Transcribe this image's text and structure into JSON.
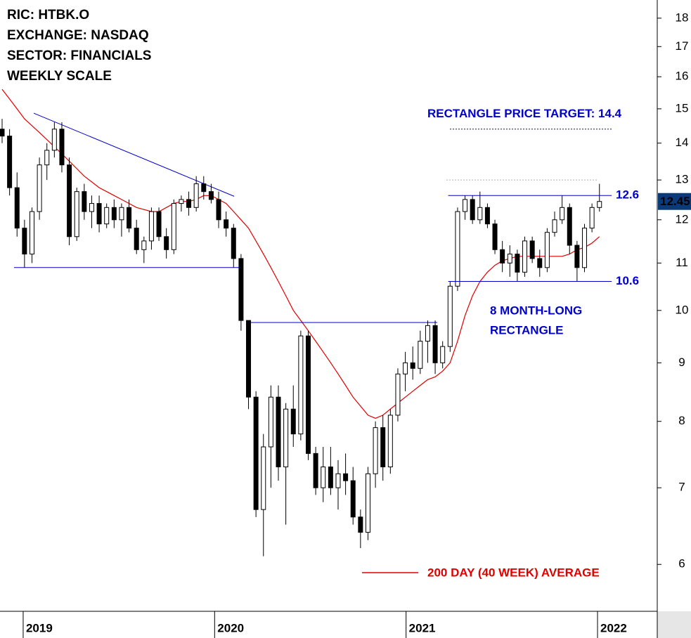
{
  "chart_data": {
    "type": "candlestick",
    "info": [
      "RIC: HTBK.O",
      "EXCHANGE: NASDAQ",
      "SECTOR: FINANCIALS",
      "WEEKLY SCALE"
    ],
    "log_scale": true,
    "xlim": [
      2018.879,
      2022.312
    ],
    "xticks": [
      2019,
      2020,
      2021,
      2022
    ],
    "ylim": [
      5.46,
      18.67
    ],
    "yticks": [
      6,
      7,
      8,
      9,
      10,
      11,
      12,
      13,
      14,
      15,
      16,
      17,
      18
    ],
    "x": [
      2018.89,
      2018.929,
      2018.968,
      2019.007,
      2019.046,
      2019.085,
      2019.124,
      2019.163,
      2019.202,
      2019.241,
      2019.28,
      2019.319,
      2019.358,
      2019.397,
      2019.436,
      2019.475,
      2019.514,
      2019.553,
      2019.592,
      2019.631,
      2019.67,
      2019.709,
      2019.748,
      2019.787,
      2019.826,
      2019.865,
      2019.904,
      2019.943,
      2019.982,
      2020.021,
      2020.06,
      2020.099,
      2020.138,
      2020.177,
      2020.216,
      2020.255,
      2020.294,
      2020.333,
      2020.372,
      2020.411,
      2020.45,
      2020.489,
      2020.528,
      2020.567,
      2020.606,
      2020.645,
      2020.684,
      2020.723,
      2020.762,
      2020.801,
      2020.84,
      2020.879,
      2020.918,
      2020.957,
      2020.996,
      2021.035,
      2021.074,
      2021.113,
      2021.152,
      2021.191,
      2021.23,
      2021.269,
      2021.308,
      2021.347,
      2021.386,
      2021.425,
      2021.464,
      2021.503,
      2021.542,
      2021.581,
      2021.62,
      2021.659,
      2021.698,
      2021.737,
      2021.776,
      2021.815,
      2021.854,
      2021.893,
      2021.932,
      2021.971,
      2022.01
    ],
    "open": [
      14.4,
      14.2,
      12.8,
      11.8,
      11.2,
      12.2,
      13.4,
      13.8,
      14.4,
      13.4,
      11.6,
      12.7,
      12.2,
      12.4,
      11.9,
      12.3,
      12.0,
      12.3,
      11.8,
      11.3,
      11.5,
      12.2,
      11.6,
      11.3,
      12.4,
      12.5,
      12.3,
      12.9,
      12.7,
      12.5,
      12.0,
      11.8,
      11.1,
      9.8,
      8.4,
      6.7,
      7.6,
      8.4,
      7.3,
      8.2,
      7.8,
      9.5,
      7.5,
      7.0,
      7.3,
      7.0,
      7.2,
      7.1,
      6.6,
      6.4,
      7.2,
      7.9,
      7.3,
      8.1,
      8.8,
      9.0,
      8.9,
      9.4,
      9.7,
      9.0,
      9.3,
      10.5,
      12.2,
      12.5,
      12.0,
      12.3,
      11.9,
      11.3,
      11.0,
      11.2,
      10.8,
      11.5,
      11.1,
      10.9,
      11.7,
      12.0,
      12.3,
      11.4,
      10.9,
      11.8,
      12.3
    ],
    "high": [
      14.7,
      14.4,
      13.2,
      12.0,
      12.3,
      13.6,
      14.0,
      14.6,
      14.6,
      13.6,
      12.8,
      12.9,
      12.6,
      12.6,
      12.4,
      12.5,
      12.4,
      12.5,
      12.0,
      11.6,
      12.3,
      12.3,
      11.8,
      12.5,
      12.6,
      12.7,
      13.1,
      13.1,
      12.9,
      12.7,
      12.2,
      11.9,
      11.2,
      9.8,
      8.5,
      7.8,
      8.6,
      8.6,
      8.3,
      8.6,
      9.6,
      9.6,
      7.6,
      7.6,
      7.6,
      7.4,
      7.5,
      7.3,
      6.7,
      7.3,
      8.0,
      8.1,
      8.2,
      8.9,
      9.2,
      9.3,
      9.6,
      9.8,
      9.8,
      9.4,
      10.6,
      12.3,
      12.6,
      12.6,
      12.7,
      12.4,
      12.0,
      11.5,
      11.4,
      11.3,
      11.6,
      11.6,
      11.3,
      11.8,
      12.2,
      12.6,
      12.4,
      11.5,
      11.9,
      12.4,
      12.9
    ],
    "low": [
      14.0,
      12.6,
      11.6,
      10.9,
      11.0,
      12.0,
      13.0,
      13.6,
      13.2,
      11.4,
      11.5,
      12.0,
      11.8,
      11.7,
      11.8,
      11.8,
      11.6,
      11.7,
      11.2,
      11.0,
      11.3,
      11.5,
      11.1,
      11.2,
      12.2,
      12.1,
      12.2,
      12.5,
      12.4,
      11.8,
      11.6,
      10.9,
      9.6,
      8.2,
      6.6,
      6.1,
      7.0,
      7.1,
      6.5,
      7.6,
      7.7,
      7.4,
      6.9,
      6.8,
      6.9,
      6.7,
      6.9,
      6.5,
      6.2,
      6.3,
      7.0,
      7.1,
      7.2,
      8.0,
      8.5,
      8.7,
      8.8,
      9.0,
      8.8,
      8.9,
      9.2,
      10.4,
      12.0,
      11.9,
      11.9,
      11.8,
      11.2,
      10.8,
      10.7,
      10.6,
      10.7,
      11.0,
      10.7,
      10.8,
      11.6,
      11.9,
      11.2,
      10.6,
      10.8,
      11.7,
      12.2
    ],
    "close": [
      14.2,
      12.8,
      11.8,
      11.2,
      12.2,
      13.4,
      13.8,
      14.4,
      13.4,
      11.6,
      12.7,
      12.2,
      12.4,
      11.9,
      12.3,
      12.0,
      12.3,
      11.8,
      11.3,
      11.5,
      12.2,
      11.6,
      11.3,
      12.4,
      12.5,
      12.3,
      12.9,
      12.7,
      12.5,
      12.0,
      11.8,
      11.1,
      9.8,
      8.4,
      6.7,
      7.6,
      8.4,
      7.3,
      8.2,
      7.8,
      9.5,
      7.5,
      7.0,
      7.3,
      7.0,
      7.2,
      7.1,
      6.6,
      6.4,
      7.2,
      7.9,
      7.3,
      8.1,
      8.8,
      9.0,
      8.9,
      9.4,
      9.7,
      9.0,
      9.3,
      10.5,
      12.2,
      12.5,
      12.0,
      12.3,
      11.9,
      11.3,
      11.0,
      11.2,
      10.8,
      11.5,
      11.1,
      10.9,
      11.7,
      12.0,
      12.3,
      11.4,
      10.9,
      11.8,
      12.3,
      12.45
    ],
    "up_color": "#ffffff",
    "down_color": "#000000",
    "moving_average": {
      "name": "200 DAY (40 WEEK) AVERAGE",
      "color": "#e00000",
      "values": [
        15.6,
        15.3,
        15.0,
        14.7,
        14.5,
        14.3,
        14.1,
        13.9,
        13.7,
        13.5,
        13.3,
        13.1,
        12.95,
        12.8,
        12.7,
        12.6,
        12.5,
        12.4,
        12.3,
        12.25,
        12.2,
        12.2,
        12.3,
        12.4,
        12.45,
        12.45,
        12.5,
        12.6,
        12.6,
        12.5,
        12.4,
        12.2,
        12.0,
        11.8,
        11.5,
        11.2,
        10.9,
        10.6,
        10.3,
        10.0,
        9.8,
        9.6,
        9.4,
        9.2,
        9.0,
        8.8,
        8.6,
        8.4,
        8.25,
        8.1,
        8.05,
        8.1,
        8.2,
        8.3,
        8.4,
        8.5,
        8.6,
        8.7,
        8.75,
        8.85,
        9.0,
        9.4,
        9.9,
        10.3,
        10.6,
        10.8,
        10.95,
        11.05,
        11.1,
        11.15,
        11.15,
        11.15,
        11.15,
        11.15,
        11.15,
        11.15,
        11.2,
        11.3,
        11.35,
        11.45,
        11.6
      ]
    },
    "trend_lines": [
      {
        "x": [
          2019.055,
          2020.102
        ],
        "y": [
          14.87,
          12.58
        ],
        "color": "#0000cc"
      },
      {
        "x": [
          2018.952,
          2020.146
        ],
        "y": [
          10.9,
          10.9
        ],
        "color": "#0000cc"
      },
      {
        "x": [
          2020.183,
          2021.163
        ],
        "y": [
          9.76,
          9.76
        ],
        "color": "#0000cc"
      },
      {
        "x": [
          2021.211,
          2021.999
        ],
        "y": [
          13.0,
          13.0
        ],
        "color": "#aaaaaa",
        "dashed": true
      }
    ],
    "rectangle": {
      "top": 12.6,
      "bottom": 10.6,
      "x": [
        2021.22,
        2022.074
      ],
      "color": "#0000cc"
    },
    "target": {
      "label": "RECTANGLE PRICE TARGET: 14.4",
      "value": 14.4,
      "x": [
        2021.229,
        2022.074
      ],
      "color": "#0000cc"
    },
    "rectangle_label": [
      "8 MONTH-LONG",
      "RECTANGLE"
    ],
    "last_price": 12.45,
    "last_price_color": "#0b3a7a"
  }
}
